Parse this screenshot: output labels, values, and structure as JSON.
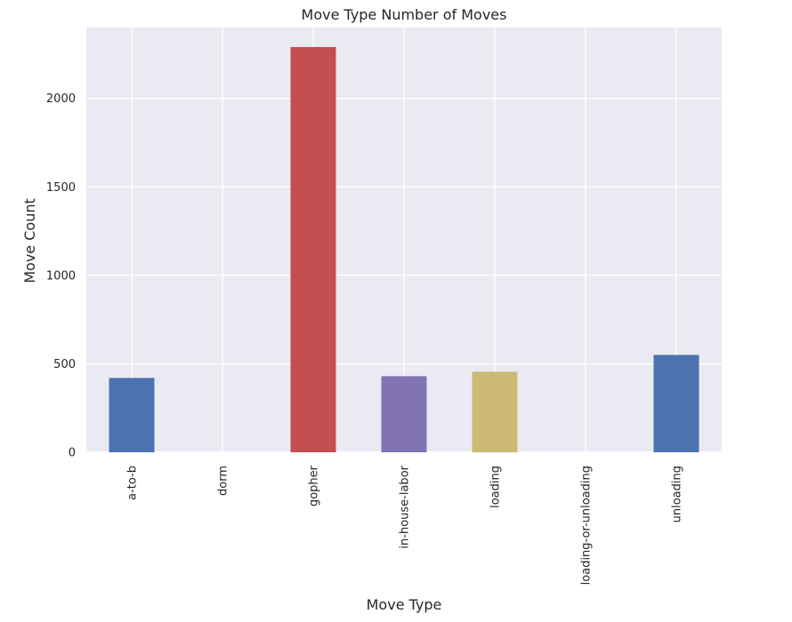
{
  "chart_data": {
    "type": "bar",
    "title": "Move Type Number of Moves",
    "xlabel": "Move Type",
    "ylabel": "Move Count",
    "categories": [
      "a-to-b",
      "dorm",
      "gopher",
      "in-house-labor",
      "loading",
      "loading-or-unloading",
      "unloading"
    ],
    "values": [
      420,
      0,
      2290,
      430,
      455,
      0,
      550
    ],
    "bar_colors": [
      "#4c72b0",
      "#55a868",
      "#c44e52",
      "#8172b2",
      "#ccb974",
      "#64b5cd",
      "#4c72b0"
    ],
    "ylim": [
      0,
      2400
    ],
    "yticks": [
      0,
      500,
      1000,
      1500,
      2000
    ],
    "grid": true,
    "plot_background": "#eaeaf2",
    "grid_color": "#ffffff"
  }
}
